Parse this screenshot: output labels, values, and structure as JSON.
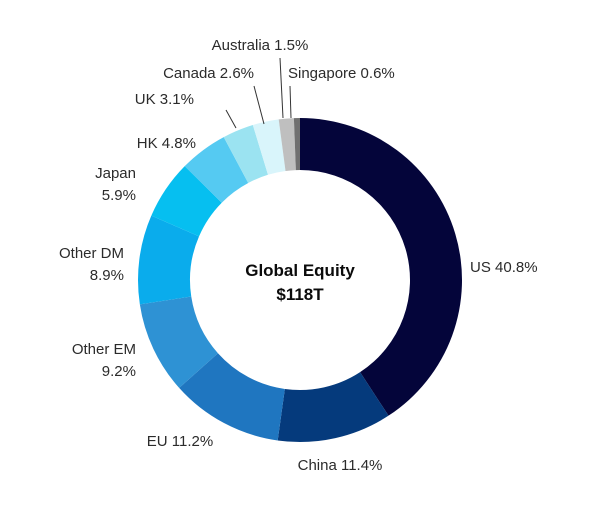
{
  "chart_data": {
    "type": "pie",
    "style": "donut",
    "center_label": [
      "Global Equity",
      "$118T"
    ],
    "slices": [
      {
        "label": "US 40.8%",
        "value": 40.8,
        "color": "#04053a"
      },
      {
        "label": "China 11.4%",
        "value": 11.4,
        "color": "#053a7c"
      },
      {
        "label": "EU 11.2%",
        "value": 11.2,
        "color": "#1f76c0"
      },
      {
        "label": "Other EM 9.2%",
        "value": 9.2,
        "color": "#2e92d4"
      },
      {
        "label": "Other DM 8.9%",
        "value": 8.9,
        "color": "#0aacec"
      },
      {
        "label": "Japan 5.9%",
        "value": 5.9,
        "color": "#06bff0"
      },
      {
        "label": "HK 4.8%",
        "value": 4.8,
        "color": "#55caf2"
      },
      {
        "label": "UK 3.1%",
        "value": 3.1,
        "color": "#9be3f1"
      },
      {
        "label": "Canada 2.6%",
        "value": 2.6,
        "color": "#d9f5fb"
      },
      {
        "label": "Australia 1.5%",
        "value": 1.5,
        "color": "#bfbfbf"
      },
      {
        "label": "Singapore 0.6%",
        "value": 0.6,
        "color": "#707070"
      }
    ]
  }
}
